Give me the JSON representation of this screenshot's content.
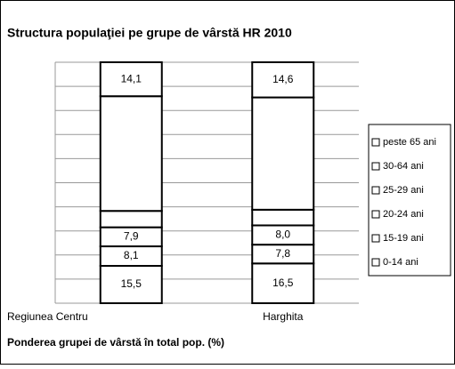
{
  "chart_data": {
    "type": "stacked_bar",
    "title": "Structura populaţiei pe grupe de vârstă HR 2010",
    "x_label": "Ponderea grupei de vârstă în total pop. (%)",
    "categories": [
      "Regiunea Centru",
      "Harghita"
    ],
    "series": [
      {
        "name": "0-14 ani",
        "color": "#ffffff",
        "values": [
          15.5,
          16.5
        ],
        "value_labels": [
          "15,5",
          "16,5"
        ]
      },
      {
        "name": "15-19 ani",
        "color": "#ffffff",
        "values": [
          8.1,
          7.8
        ],
        "value_labels": [
          "8,1",
          "7,8"
        ]
      },
      {
        "name": "20-24 ani",
        "color": "#ffffff",
        "values": [
          7.9,
          8.0
        ],
        "value_labels": [
          "7,9",
          "8,0"
        ]
      },
      {
        "name": "25-29 ani",
        "color": "#ffffff",
        "values": [
          6.8,
          6.5
        ],
        "value_labels": [
          null,
          null
        ]
      },
      {
        "name": "30-64 ani",
        "color": "#ffffff",
        "values": [
          47.6,
          46.6
        ],
        "value_labels": [
          null,
          null
        ]
      },
      {
        "name": "peste 65 ani",
        "color": "#ffffff",
        "values": [
          14.1,
          14.6
        ],
        "value_labels": [
          "14,1",
          "14,6"
        ]
      }
    ],
    "ylim": [
      0,
      100
    ],
    "yticks": [
      0,
      10,
      20,
      30,
      40,
      50,
      60,
      70,
      80,
      90,
      100
    ],
    "grid": true,
    "legend": "right"
  }
}
